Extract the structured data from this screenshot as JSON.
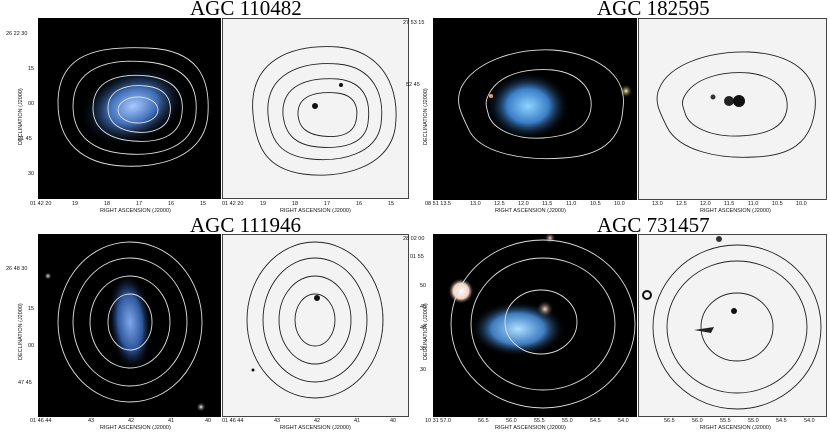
{
  "figures": [
    {
      "title": "AGC 110482",
      "xlabel": "RIGHT ASCENSION (J2000)",
      "ylabel": "DECLINATION (J2000)",
      "xticks": [
        "01 42 20",
        "19",
        "18",
        "17",
        "16",
        "15"
      ],
      "xticks_right": [
        "01 42 20",
        "19",
        "18",
        "17",
        "16",
        "15"
      ],
      "yticks": [
        "26 22 30",
        "15",
        "00",
        "21 45",
        "30"
      ]
    },
    {
      "title": "AGC 182595",
      "xlabel": "RIGHT ASCENSION (J2000)",
      "ylabel": "DECLINATION (J2000)",
      "xticks": [
        "08 51 13.5",
        "13.0",
        "12.5",
        "12.0",
        "11.5",
        "11.0",
        "10.5",
        "10.0"
      ],
      "xticks_right": [
        "13.0",
        "12.5",
        "12.0",
        "11.5",
        "11.0",
        "10.5",
        "10.0"
      ],
      "yticks": [
        "27 53 15",
        "52 45"
      ]
    },
    {
      "title": "AGC 111946",
      "xlabel": "RIGHT ASCENSION (J2000)",
      "ylabel": "DECLINATION (J2000)",
      "xticks": [
        "01 46 44",
        "43",
        "42",
        "41",
        "40"
      ],
      "xticks_right": [
        "01 46 44",
        "43",
        "42",
        "41",
        "40"
      ],
      "yticks": [
        "26 48 30",
        "15",
        "00",
        "47 45"
      ]
    },
    {
      "title": "AGC 731457",
      "xlabel": "RIGHT ASCENSION (J2000)",
      "ylabel": "DECLINATION (J2000)",
      "xticks": [
        "10 31 57.0",
        "56.5",
        "56.0",
        "55.5",
        "55.0",
        "54.5",
        "54.0"
      ],
      "xticks_right": [
        "56.5",
        "56.0",
        "55.5",
        "55.0",
        "54.5",
        "54.0"
      ],
      "yticks": [
        "28 02 00",
        "01 55",
        "50",
        "45",
        "40",
        "35",
        "30"
      ]
    }
  ]
}
